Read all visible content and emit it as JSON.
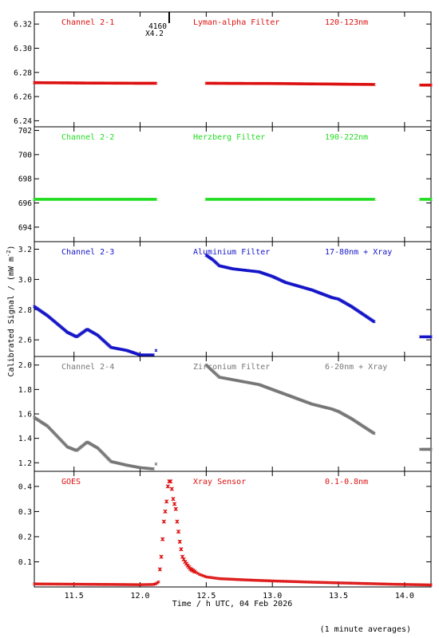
{
  "chart_data": [
    {
      "type": "scatter",
      "channel": "Channel 2-1",
      "filter": "Lyman-alpha Filter",
      "band": "120-123nm",
      "color": "#dd1010",
      "xlim": [
        11.2,
        14.2
      ],
      "ylim": [
        6.235,
        6.33
      ],
      "yticks": [
        6.24,
        6.26,
        6.28,
        6.3,
        6.32
      ],
      "ytick_labels": [
        "6.24",
        "6.26",
        "6.28",
        "6.30",
        "6.32"
      ],
      "series": [
        {
          "x": [
            11.2,
            11.6,
            12.0,
            12.12
          ],
          "y": [
            6.2715,
            6.2712,
            6.271,
            6.271
          ]
        },
        {
          "x": [
            12.5,
            13.0,
            13.5,
            13.77
          ],
          "y": [
            6.271,
            6.2708,
            6.2703,
            6.27
          ]
        },
        {
          "x": [
            14.12,
            14.2
          ],
          "y": [
            6.2695,
            6.2695
          ]
        }
      ],
      "annotation": {
        "x": 12.22,
        "text1": "4160",
        "text2": "X4.2"
      }
    },
    {
      "type": "scatter",
      "channel": "Channel 2-2",
      "filter": "Herzberg Filter",
      "band": "190-222nm",
      "color": "#22dd22",
      "xlim": [
        11.2,
        14.2
      ],
      "ylim": [
        692.8,
        702.3
      ],
      "yticks": [
        694,
        696,
        698,
        700,
        702
      ],
      "ytick_labels": [
        "694",
        "696",
        "698",
        "700",
        "702"
      ],
      "series": [
        {
          "x": [
            11.2,
            12.12
          ],
          "y": [
            696.3,
            696.3
          ]
        },
        {
          "x": [
            12.5,
            13.77
          ],
          "y": [
            696.3,
            696.3
          ]
        },
        {
          "x": [
            14.12,
            14.2
          ],
          "y": [
            696.3,
            696.3
          ]
        }
      ]
    },
    {
      "type": "scatter",
      "channel": "Channel 2-3",
      "filter": "Aluminium Filter",
      "band": "17-80nm + Xray",
      "color": "#1515c8",
      "xlim": [
        11.2,
        14.2
      ],
      "ylim": [
        2.49,
        3.25
      ],
      "yticks": [
        2.6,
        2.8,
        3.0,
        3.2
      ],
      "ytick_labels": [
        "2.6",
        "2.8",
        "3.0",
        "3.2"
      ],
      "series": [
        {
          "x": [
            11.2,
            11.3,
            11.45,
            11.52,
            11.6,
            11.68,
            11.78,
            11.9,
            12.0,
            12.1
          ],
          "y": [
            2.82,
            2.76,
            2.65,
            2.62,
            2.67,
            2.63,
            2.55,
            2.53,
            2.5,
            2.5
          ]
        },
        {
          "x": [
            12.12
          ],
          "y": [
            2.53
          ]
        },
        {
          "x": [
            12.5,
            12.55,
            12.6,
            12.7,
            12.9,
            13.0,
            13.1,
            13.3,
            13.45,
            13.5,
            13.6,
            13.77
          ],
          "y": [
            3.16,
            3.13,
            3.09,
            3.07,
            3.05,
            3.02,
            2.98,
            2.93,
            2.88,
            2.87,
            2.82,
            2.72
          ]
        },
        {
          "x": [
            14.12,
            14.2
          ],
          "y": [
            2.62,
            2.62
          ]
        }
      ]
    },
    {
      "type": "scatter",
      "channel": "Channel 2-4",
      "filter": "Zirconium Filter",
      "band": "6-20nm + Xray",
      "color": "#777777",
      "xlim": [
        11.2,
        14.2
      ],
      "ylim": [
        1.13,
        2.07
      ],
      "yticks": [
        1.2,
        1.4,
        1.6,
        1.8,
        2.0
      ],
      "ytick_labels": [
        "1.2",
        "1.4",
        "1.6",
        "1.8",
        "2.0"
      ],
      "series": [
        {
          "x": [
            11.2,
            11.3,
            11.45,
            11.52,
            11.6,
            11.68,
            11.78,
            11.9,
            12.0,
            12.1
          ],
          "y": [
            1.57,
            1.5,
            1.33,
            1.3,
            1.37,
            1.32,
            1.21,
            1.18,
            1.16,
            1.15
          ]
        },
        {
          "x": [
            12.12
          ],
          "y": [
            1.19
          ]
        },
        {
          "x": [
            12.5,
            12.55,
            12.6,
            12.7,
            12.9,
            13.0,
            13.1,
            13.3,
            13.45,
            13.5,
            13.6,
            13.77
          ],
          "y": [
            2.0,
            1.95,
            1.9,
            1.88,
            1.84,
            1.8,
            1.76,
            1.68,
            1.64,
            1.62,
            1.56,
            1.44
          ]
        },
        {
          "x": [
            14.12,
            14.2
          ],
          "y": [
            1.31,
            1.31
          ]
        }
      ]
    },
    {
      "type": "scatter",
      "channel": "GOES",
      "filter": "Xray Sensor",
      "band": "0.1-0.8nm",
      "color": "#dd1010",
      "xlim": [
        11.2,
        14.2
      ],
      "ylim": [
        0,
        0.46
      ],
      "yticks": [
        0.1,
        0.2,
        0.3,
        0.4
      ],
      "ytick_labels": [
        "0.1",
        "0.2",
        "0.3",
        "0.4"
      ],
      "series": [
        {
          "x": [
            11.2,
            11.5,
            11.8,
            12.0,
            12.1,
            12.12,
            12.14,
            12.16,
            12.18,
            12.2,
            12.21,
            12.22,
            12.23,
            12.24,
            12.25,
            12.27,
            12.28,
            12.3,
            12.32,
            12.34,
            12.36,
            12.38,
            12.4,
            12.45,
            12.5,
            12.6,
            12.8,
            13.0,
            13.3,
            13.6,
            13.9,
            14.2
          ],
          "y": [
            0.012,
            0.011,
            0.01,
            0.009,
            0.01,
            0.013,
            0.02,
            0.12,
            0.26,
            0.34,
            0.4,
            0.42,
            0.42,
            0.39,
            0.35,
            0.31,
            0.26,
            0.18,
            0.12,
            0.1,
            0.085,
            0.072,
            0.065,
            0.05,
            0.04,
            0.033,
            0.028,
            0.024,
            0.019,
            0.015,
            0.011,
            0.008
          ]
        }
      ]
    }
  ],
  "shared_xaxis": {
    "ticks": [
      11.5,
      12.0,
      12.5,
      13.0,
      13.5,
      14.0
    ],
    "tick_labels": [
      "11.5",
      "12.0",
      "12.5",
      "13.0",
      "13.5",
      "14.0"
    ],
    "label": "Time / h UTC, 04 Feb 2026"
  },
  "ylabel": "Calibrated Signal / (mW m",
  "ylabel_sup": "-2",
  "ylabel_close": ")",
  "footnote": "(1 minute averages)"
}
